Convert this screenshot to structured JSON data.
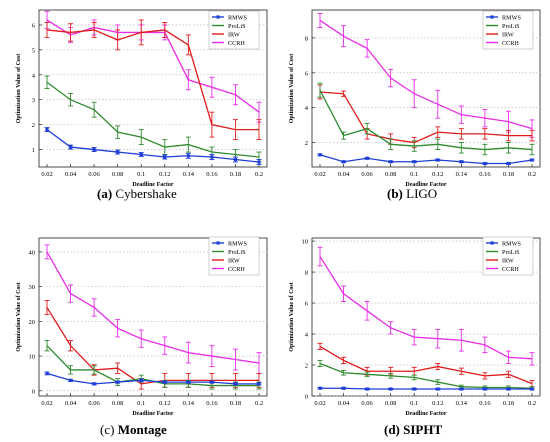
{
  "figure": {
    "captions": [
      {
        "letter": "(a)",
        "text": "Cybershake"
      },
      {
        "letter": "(b)",
        "text": "LIGO"
      },
      {
        "letter": "(c)",
        "text": "Montage"
      },
      {
        "letter": "(d)",
        "text": "SIPHT"
      }
    ]
  },
  "colors": {
    "RMWS": "#1f3fd6",
    "ProLiS": "#2e8b2e",
    "IRW": "#e01b1b",
    "CCRH": "#e82ce8",
    "grid": "#b0b0b0"
  },
  "chart_data": [
    {
      "type": "line",
      "title": "",
      "xlabel": "Deadline Factor",
      "ylabel": "Optimization Value of Cost",
      "x": [
        0.02,
        0.04,
        0.06,
        0.08,
        0.1,
        0.12,
        0.14,
        0.16,
        0.18,
        0.2
      ],
      "x_tick_labels": [
        "0.02",
        "0.04",
        "0.06",
        "0.08",
        "0.1",
        "0.12",
        "0.14",
        "0.16",
        "0.18",
        "0.2"
      ],
      "ylim": [
        0.3,
        6.6
      ],
      "y_ticks": [
        1,
        2,
        3,
        4,
        5,
        6
      ],
      "grid": "horizontal dotted",
      "legend": "top-right",
      "series": [
        {
          "name": "RMWS",
          "values": [
            1.8,
            1.1,
            1.0,
            0.9,
            0.8,
            0.7,
            0.75,
            0.7,
            0.6,
            0.5
          ],
          "err": [
            0.08,
            0.08,
            0.08,
            0.08,
            0.08,
            0.08,
            0.1,
            0.1,
            0.1,
            0.1
          ]
        },
        {
          "name": "ProLiS",
          "values": [
            3.7,
            3.0,
            2.6,
            1.7,
            1.5,
            1.1,
            1.2,
            0.9,
            0.8,
            0.7
          ],
          "err": [
            0.25,
            0.25,
            0.3,
            0.25,
            0.3,
            0.3,
            0.3,
            0.2,
            0.2,
            0.2
          ]
        },
        {
          "name": "IRW",
          "values": [
            5.8,
            5.7,
            5.8,
            5.4,
            5.7,
            5.8,
            5.2,
            2.0,
            1.8,
            1.8
          ],
          "err": [
            0.3,
            0.35,
            0.3,
            0.4,
            0.5,
            0.3,
            0.4,
            0.5,
            0.4,
            0.4
          ]
        },
        {
          "name": "CCRH",
          "values": [
            6.2,
            5.6,
            5.9,
            5.7,
            5.7,
            5.7,
            3.8,
            3.5,
            3.2,
            2.5
          ],
          "err": [
            0.35,
            0.3,
            0.3,
            0.3,
            0.3,
            0.3,
            0.4,
            0.4,
            0.4,
            0.4
          ]
        }
      ]
    },
    {
      "type": "line",
      "title": "",
      "xlabel": "Deadline Factor",
      "ylabel": "Optimization Value of Cost",
      "x": [
        0.02,
        0.04,
        0.06,
        0.08,
        0.1,
        0.12,
        0.14,
        0.16,
        0.18,
        0.2
      ],
      "x_tick_labels": [
        "0.02",
        "0.04",
        "0.06",
        "0.08",
        "0.1",
        "0.12",
        "0.14",
        "0.16",
        "0.18",
        "0.2"
      ],
      "ylim": [
        0.6,
        9.6
      ],
      "y_ticks": [
        2,
        4,
        6,
        8
      ],
      "grid": "horizontal dotted",
      "legend": "top-right",
      "series": [
        {
          "name": "RMWS",
          "values": [
            1.3,
            0.9,
            1.1,
            0.9,
            0.9,
            1.0,
            0.9,
            0.8,
            0.8,
            1.0
          ],
          "err": [
            0.05,
            0.05,
            0.05,
            0.05,
            0.05,
            0.05,
            0.05,
            0.05,
            0.05,
            0.05
          ]
        },
        {
          "name": "ProLiS",
          "values": [
            5.0,
            2.4,
            2.8,
            1.9,
            1.8,
            1.9,
            1.7,
            1.6,
            1.7,
            1.6
          ],
          "err": [
            0.4,
            0.2,
            0.3,
            0.3,
            0.3,
            0.3,
            0.3,
            0.3,
            0.3,
            0.3
          ]
        },
        {
          "name": "IRW",
          "values": [
            4.9,
            4.8,
            2.5,
            2.2,
            2.0,
            2.6,
            2.5,
            2.5,
            2.4,
            2.4
          ],
          "err": [
            0.4,
            0.15,
            0.3,
            0.3,
            0.3,
            0.3,
            0.3,
            0.3,
            0.3,
            0.3
          ]
        },
        {
          "name": "CCRH",
          "values": [
            9.0,
            8.1,
            7.4,
            5.7,
            4.8,
            4.2,
            3.6,
            3.4,
            3.2,
            2.8
          ],
          "err": [
            0.4,
            0.6,
            0.5,
            0.5,
            0.8,
            0.8,
            0.5,
            0.5,
            0.6,
            0.5
          ]
        }
      ]
    },
    {
      "type": "line",
      "title": "",
      "xlabel": "Deadline Factor",
      "ylabel": "Optimization Value of Cost",
      "x": [
        0.02,
        0.04,
        0.06,
        0.08,
        0.1,
        0.12,
        0.14,
        0.16,
        0.18,
        0.2
      ],
      "x_tick_labels": [
        "0.02",
        "0.04",
        "0.06",
        "0.08",
        "0.1",
        "0.12",
        "0.14",
        "0.16",
        "0.18",
        "0.2"
      ],
      "ylim": [
        -1.5,
        44
      ],
      "y_ticks": [
        0,
        10,
        20,
        30,
        40
      ],
      "grid": "horizontal dotted",
      "legend": "top-right",
      "series": [
        {
          "name": "RMWS",
          "values": [
            5,
            3,
            2,
            2.5,
            3,
            2.5,
            2.5,
            2.5,
            2,
            2
          ],
          "err": [
            0.4,
            0.3,
            0.3,
            0.3,
            0.4,
            0.3,
            0.3,
            0.3,
            0.3,
            0.3
          ]
        },
        {
          "name": "ProLiS",
          "values": [
            13,
            6,
            6,
            2.5,
            3.5,
            2,
            2,
            1.5,
            1.5,
            1.5
          ],
          "err": [
            1.5,
            1.2,
            1.2,
            1.0,
            1.0,
            1.0,
            1.0,
            1.0,
            1.0,
            1.0
          ]
        },
        {
          "name": "IRW",
          "values": [
            24,
            13,
            6,
            6.5,
            2,
            3,
            3,
            3,
            3,
            3
          ],
          "err": [
            2.0,
            1.5,
            1.5,
            1.5,
            1.5,
            2.0,
            2.0,
            2.0,
            2.0,
            2.0
          ]
        },
        {
          "name": "CCRH",
          "values": [
            40,
            28,
            24,
            18,
            15,
            13,
            11,
            10,
            9,
            8
          ],
          "err": [
            2.0,
            2.5,
            2.5,
            2.5,
            2.5,
            2.5,
            3.0,
            3.0,
            3.0,
            3.0
          ]
        }
      ]
    },
    {
      "type": "line",
      "title": "",
      "xlabel": "Deadline Factor",
      "ylabel": "Optimization Value of Cost",
      "x": [
        0.02,
        0.04,
        0.06,
        0.08,
        0.1,
        0.12,
        0.14,
        0.16,
        0.18,
        0.2
      ],
      "x_tick_labels": [
        "0.02",
        "0.04",
        "0.06",
        "0.08",
        "0.1",
        "0.12",
        "0.14",
        "0.16",
        "0.18",
        "0.2"
      ],
      "ylim": [
        0,
        10.2
      ],
      "y_ticks": [
        0,
        2,
        4,
        6,
        8,
        10
      ],
      "grid": "horizontal dotted",
      "legend": "top-right",
      "series": [
        {
          "name": "RMWS",
          "values": [
            0.5,
            0.5,
            0.45,
            0.45,
            0.45,
            0.45,
            0.45,
            0.45,
            0.45,
            0.45
          ],
          "err": [
            0.05,
            0.05,
            0.05,
            0.05,
            0.05,
            0.05,
            0.05,
            0.05,
            0.05,
            0.05
          ]
        },
        {
          "name": "ProLiS",
          "values": [
            2.1,
            1.5,
            1.4,
            1.3,
            1.2,
            0.9,
            0.6,
            0.55,
            0.55,
            0.5
          ],
          "err": [
            0.2,
            0.15,
            0.15,
            0.15,
            0.15,
            0.15,
            0.1,
            0.1,
            0.1,
            0.1
          ]
        },
        {
          "name": "IRW",
          "values": [
            3.2,
            2.3,
            1.6,
            1.6,
            1.6,
            1.9,
            1.6,
            1.3,
            1.4,
            0.8
          ],
          "err": [
            0.2,
            0.2,
            0.25,
            0.25,
            0.25,
            0.2,
            0.2,
            0.2,
            0.2,
            0.2
          ]
        },
        {
          "name": "CCRH",
          "values": [
            9.0,
            6.6,
            5.5,
            4.4,
            3.8,
            3.7,
            3.6,
            3.3,
            2.5,
            2.4
          ],
          "err": [
            0.6,
            0.5,
            0.6,
            0.4,
            0.5,
            0.6,
            0.7,
            0.5,
            0.4,
            0.4
          ]
        }
      ]
    }
  ]
}
